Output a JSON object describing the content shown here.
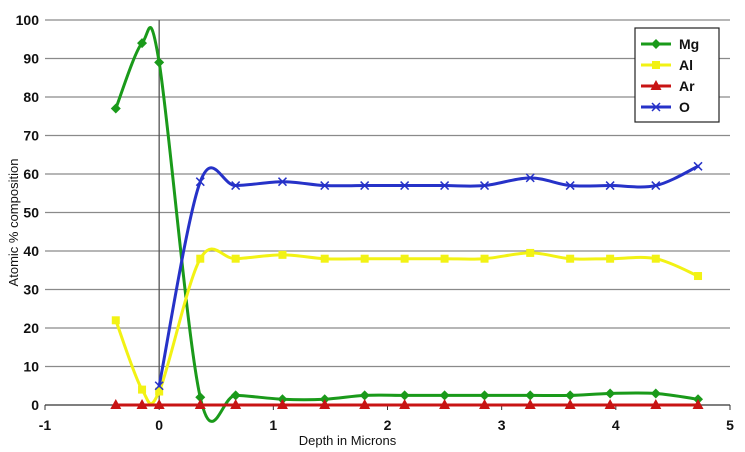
{
  "chart_data": {
    "type": "line",
    "xlabel": "Depth in Microns",
    "ylabel": "Atomic % composition",
    "xlim": [
      -1,
      5
    ],
    "ylim": [
      0,
      100
    ],
    "x_ticks": [
      "-1",
      "0",
      "1",
      "2",
      "3",
      "4",
      "5"
    ],
    "y_ticks": [
      "0",
      "10",
      "20",
      "30",
      "40",
      "50",
      "60",
      "70",
      "80",
      "90",
      "100"
    ],
    "x_tick_values": [
      -1,
      0,
      1,
      2,
      3,
      4,
      5
    ],
    "y_tick_values": [
      0,
      10,
      20,
      30,
      40,
      50,
      60,
      70,
      80,
      90,
      100
    ],
    "grid": "horizontal",
    "legend_position": "top-right",
    "series": [
      {
        "name": "Mg",
        "color": "#1a9a1a",
        "marker": "diamond",
        "points": [
          [
            -0.38,
            77
          ],
          [
            -0.15,
            94
          ],
          [
            0.0,
            89
          ],
          [
            0.36,
            2
          ],
          [
            0.67,
            2.5
          ],
          [
            1.08,
            1.5
          ],
          [
            1.45,
            1.5
          ],
          [
            1.8,
            2.5
          ],
          [
            2.15,
            2.5
          ],
          [
            2.5,
            2.5
          ],
          [
            2.85,
            2.5
          ],
          [
            3.25,
            2.5
          ],
          [
            3.6,
            2.5
          ],
          [
            3.95,
            3
          ],
          [
            4.35,
            3
          ],
          [
            4.72,
            1.5
          ]
        ]
      },
      {
        "name": "Al",
        "color": "#f2f214",
        "marker": "square",
        "points": [
          [
            -0.38,
            22
          ],
          [
            -0.15,
            4
          ],
          [
            0.0,
            3.5
          ],
          [
            0.36,
            38
          ],
          [
            0.67,
            38
          ],
          [
            1.08,
            39
          ],
          [
            1.45,
            38
          ],
          [
            1.8,
            38
          ],
          [
            2.15,
            38
          ],
          [
            2.5,
            38
          ],
          [
            2.85,
            38
          ],
          [
            3.25,
            39.5
          ],
          [
            3.6,
            38
          ],
          [
            3.95,
            38
          ],
          [
            4.35,
            38
          ],
          [
            4.72,
            33.5
          ]
        ]
      },
      {
        "name": "Ar",
        "color": "#c81414",
        "marker": "triangle",
        "points": [
          [
            -0.38,
            0
          ],
          [
            -0.15,
            0
          ],
          [
            0.0,
            0
          ],
          [
            0.36,
            0
          ],
          [
            0.67,
            0
          ],
          [
            1.08,
            0
          ],
          [
            1.45,
            0
          ],
          [
            1.8,
            0
          ],
          [
            2.15,
            0
          ],
          [
            2.5,
            0
          ],
          [
            2.85,
            0
          ],
          [
            3.25,
            0
          ],
          [
            3.6,
            0
          ],
          [
            3.95,
            0
          ],
          [
            4.35,
            0
          ],
          [
            4.72,
            0
          ]
        ]
      },
      {
        "name": "O",
        "color": "#2632c8",
        "marker": "x",
        "points": [
          [
            0.0,
            5
          ],
          [
            0.36,
            58
          ],
          [
            0.67,
            57
          ],
          [
            1.08,
            58
          ],
          [
            1.45,
            57
          ],
          [
            1.8,
            57
          ],
          [
            2.15,
            57
          ],
          [
            2.5,
            57
          ],
          [
            2.85,
            57
          ],
          [
            3.25,
            59
          ],
          [
            3.6,
            57
          ],
          [
            3.95,
            57
          ],
          [
            4.35,
            57
          ],
          [
            4.72,
            62
          ]
        ]
      }
    ]
  }
}
